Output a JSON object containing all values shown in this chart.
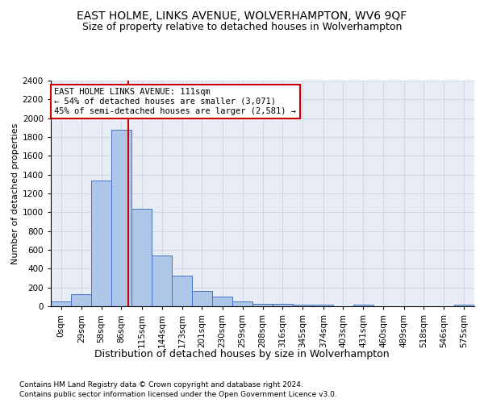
{
  "title1": "EAST HOLME, LINKS AVENUE, WOLVERHAMPTON, WV6 9QF",
  "title2": "Size of property relative to detached houses in Wolverhampton",
  "xlabel": "Distribution of detached houses by size in Wolverhampton",
  "ylabel": "Number of detached properties",
  "footnote1": "Contains HM Land Registry data © Crown copyright and database right 2024.",
  "footnote2": "Contains public sector information licensed under the Open Government Licence v3.0.",
  "annotation_title": "EAST HOLME LINKS AVENUE: 111sqm",
  "annotation_line1": "← 54% of detached houses are smaller (3,071)",
  "annotation_line2": "45% of semi-detached houses are larger (2,581) →",
  "property_size": 111,
  "bar_labels": [
    "0sqm",
    "29sqm",
    "58sqm",
    "86sqm",
    "115sqm",
    "144sqm",
    "173sqm",
    "201sqm",
    "230sqm",
    "259sqm",
    "288sqm",
    "316sqm",
    "345sqm",
    "374sqm",
    "403sqm",
    "431sqm",
    "460sqm",
    "489sqm",
    "518sqm",
    "546sqm",
    "575sqm"
  ],
  "bar_values": [
    50,
    130,
    1340,
    1880,
    1040,
    540,
    330,
    165,
    105,
    55,
    30,
    30,
    20,
    20,
    0,
    20,
    0,
    0,
    0,
    0,
    20
  ],
  "bin_edges": [
    0,
    29,
    58,
    86,
    115,
    144,
    173,
    201,
    230,
    259,
    288,
    316,
    345,
    374,
    403,
    431,
    460,
    489,
    518,
    546,
    575,
    604
  ],
  "bar_color": "#aec6e8",
  "bar_edge_color": "#4472c4",
  "vline_color": "#cc0000",
  "vline_x": 111,
  "ylim": [
    0,
    2400
  ],
  "yticks": [
    0,
    200,
    400,
    600,
    800,
    1000,
    1200,
    1400,
    1600,
    1800,
    2000,
    2200,
    2400
  ],
  "grid_color": "#d0d8e8",
  "background_color": "#e8edf5",
  "annotation_box_color": "#ffffff",
  "annotation_box_edge": "#cc0000",
  "title1_fontsize": 10,
  "title2_fontsize": 9,
  "xlabel_fontsize": 9,
  "ylabel_fontsize": 8,
  "tick_fontsize": 7.5,
  "annotation_fontsize": 7.5,
  "footnote_fontsize": 6.5
}
